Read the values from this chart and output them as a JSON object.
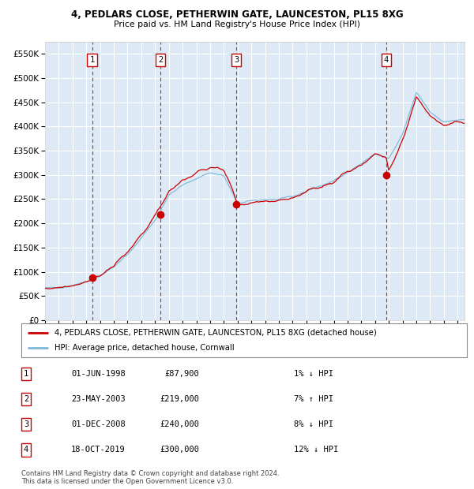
{
  "title1": "4, PEDLARS CLOSE, PETHERWIN GATE, LAUNCESTON, PL15 8XG",
  "title2": "Price paid vs. HM Land Registry's House Price Index (HPI)",
  "legend1": "4, PEDLARS CLOSE, PETHERWIN GATE, LAUNCESTON, PL15 8XG (detached house)",
  "legend2": "HPI: Average price, detached house, Cornwall",
  "sales": [
    {
      "num": 1,
      "date_str": "01-JUN-1998",
      "year": 1998.42,
      "price": 87900,
      "pct": "1%",
      "dir": "↓"
    },
    {
      "num": 2,
      "date_str": "23-MAY-2003",
      "year": 2003.39,
      "price": 219000,
      "pct": "7%",
      "dir": "↑"
    },
    {
      "num": 3,
      "date_str": "01-DEC-2008",
      "year": 2008.92,
      "price": 240000,
      "pct": "8%",
      "dir": "↓"
    },
    {
      "num": 4,
      "date_str": "18-OCT-2019",
      "year": 2019.79,
      "price": 300000,
      "pct": "12%",
      "dir": "↓"
    }
  ],
  "hpi_color": "#7fb8d8",
  "sale_color": "#cc0000",
  "vline_color": "#cc0000",
  "bg_color": "#ddeaf5",
  "grid_color": "#ffffff",
  "footer": "Contains HM Land Registry data © Crown copyright and database right 2024.\nThis data is licensed under the Open Government Licence v3.0.",
  "ylim": [
    0,
    575000
  ],
  "yticks": [
    0,
    50000,
    100000,
    150000,
    200000,
    250000,
    300000,
    350000,
    400000,
    450000,
    500000,
    550000
  ],
  "xmin": 1995.0,
  "xmax": 2025.5,
  "hpi_anchors_x": [
    1995,
    1996,
    1997,
    1998,
    1999,
    2000,
    2001,
    2002,
    2003,
    2004,
    2005,
    2006,
    2007,
    2008,
    2009,
    2010,
    2011,
    2012,
    2013,
    2014,
    2015,
    2016,
    2017,
    2018,
    2019,
    2020,
    2021,
    2022,
    2023,
    2024,
    2025.5
  ],
  "hpi_anchors_y": [
    65000,
    68000,
    73000,
    80000,
    92000,
    110000,
    135000,
    170000,
    207000,
    258000,
    278000,
    293000,
    305000,
    298000,
    240000,
    246000,
    250000,
    249000,
    254000,
    267000,
    277000,
    287000,
    307000,
    323000,
    344000,
    333000,
    383000,
    470000,
    430000,
    410000,
    414000
  ]
}
